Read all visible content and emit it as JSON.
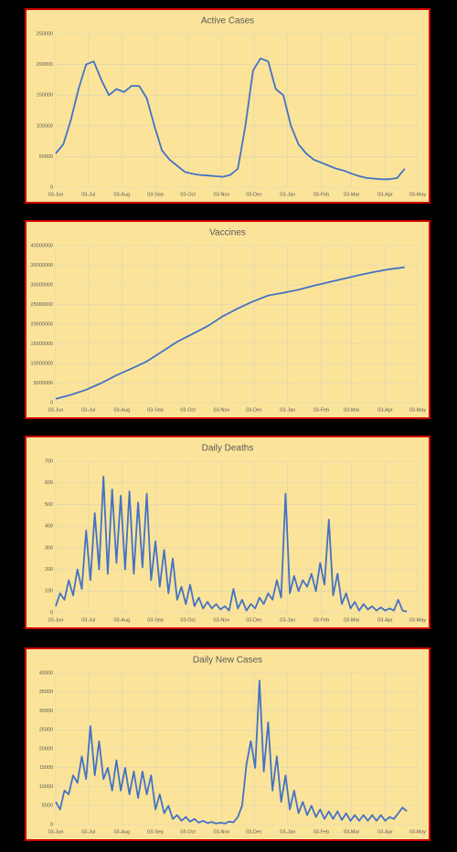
{
  "chart_data": [
    {
      "type": "line",
      "title": "Active Cases",
      "color": "#4472c4",
      "grid": true,
      "xlim": [
        0,
        334
      ],
      "xticks": [
        {
          "value": 0,
          "label": "03-Jun"
        },
        {
          "value": 30,
          "label": "03-Jul"
        },
        {
          "value": 61,
          "label": "03-Aug"
        },
        {
          "value": 92,
          "label": "03-Sep"
        },
        {
          "value": 122,
          "label": "03-Oct"
        },
        {
          "value": 153,
          "label": "03-Nov"
        },
        {
          "value": 183,
          "label": "03-Dec"
        },
        {
          "value": 214,
          "label": "03-Jan"
        },
        {
          "value": 245,
          "label": "03-Feb"
        },
        {
          "value": 273,
          "label": "03-Mar"
        },
        {
          "value": 304,
          "label": "03-Apr"
        },
        {
          "value": 334,
          "label": "03-May"
        }
      ],
      "ylim": [
        0,
        250000
      ],
      "yticks": [
        0,
        50000,
        100000,
        150000,
        200000,
        250000
      ],
      "x": [
        0,
        7,
        14,
        21,
        28,
        35,
        42,
        49,
        56,
        63,
        70,
        77,
        84,
        91,
        98,
        105,
        112,
        119,
        126,
        133,
        140,
        147,
        154,
        161,
        168,
        175,
        182,
        189,
        196,
        203,
        210,
        217,
        224,
        231,
        238,
        245,
        252,
        259,
        266,
        273,
        280,
        287,
        294,
        301,
        308,
        315,
        322
      ],
      "values": [
        55000,
        70000,
        110000,
        160000,
        200000,
        205000,
        175000,
        150000,
        160000,
        155000,
        165000,
        165000,
        145000,
        100000,
        60000,
        45000,
        35000,
        25000,
        22000,
        20000,
        19000,
        18000,
        17000,
        20000,
        30000,
        100000,
        190000,
        210000,
        205000,
        160000,
        150000,
        100000,
        70000,
        55000,
        45000,
        40000,
        35000,
        30000,
        27000,
        22000,
        18000,
        15000,
        14000,
        13000,
        13000,
        15000,
        30000
      ]
    },
    {
      "type": "line",
      "title": "Vaccines",
      "color": "#4472c4",
      "grid": true,
      "xlim": [
        0,
        334
      ],
      "xticks": [
        {
          "value": 0,
          "label": "03-Jun"
        },
        {
          "value": 30,
          "label": "03-Jul"
        },
        {
          "value": 61,
          "label": "03-Aug"
        },
        {
          "value": 92,
          "label": "03-Sep"
        },
        {
          "value": 122,
          "label": "03-Oct"
        },
        {
          "value": 153,
          "label": "03-Nov"
        },
        {
          "value": 183,
          "label": "03-Dec"
        },
        {
          "value": 214,
          "label": "03-Jan"
        },
        {
          "value": 245,
          "label": "03-Feb"
        },
        {
          "value": 273,
          "label": "03-Mar"
        },
        {
          "value": 304,
          "label": "03-Apr"
        },
        {
          "value": 334,
          "label": "03-May"
        }
      ],
      "ylim": [
        0,
        40000000
      ],
      "yticks": [
        0,
        5000000,
        10000000,
        15000000,
        20000000,
        25000000,
        30000000,
        35000000,
        40000000
      ],
      "x": [
        0,
        14,
        28,
        42,
        56,
        70,
        84,
        98,
        112,
        126,
        140,
        154,
        168,
        182,
        196,
        210,
        224,
        238,
        252,
        266,
        280,
        294,
        308,
        322
      ],
      "values": [
        1000000,
        2000000,
        3300000,
        5000000,
        7000000,
        8700000,
        10500000,
        13000000,
        15500000,
        17500000,
        19500000,
        22000000,
        24000000,
        25800000,
        27300000,
        28000000,
        28800000,
        29800000,
        30700000,
        31600000,
        32500000,
        33300000,
        34000000,
        34500000
      ]
    },
    {
      "type": "line",
      "title": "Daily Deaths",
      "color": "#4472c4",
      "grid": true,
      "xlim": [
        0,
        334
      ],
      "xticks": [
        {
          "value": 0,
          "label": "03-Jun"
        },
        {
          "value": 30,
          "label": "03-Jul"
        },
        {
          "value": 61,
          "label": "03-Aug"
        },
        {
          "value": 92,
          "label": "03-Sep"
        },
        {
          "value": 122,
          "label": "03-Oct"
        },
        {
          "value": 153,
          "label": "03-Nov"
        },
        {
          "value": 183,
          "label": "03-Dec"
        },
        {
          "value": 214,
          "label": "03-Jan"
        },
        {
          "value": 245,
          "label": "03-Feb"
        },
        {
          "value": 273,
          "label": "03-Mar"
        },
        {
          "value": 304,
          "label": "03-Apr"
        },
        {
          "value": 334,
          "label": "03-May"
        }
      ],
      "ylim": [
        0,
        700
      ],
      "yticks": [
        0,
        100,
        200,
        300,
        400,
        500,
        600,
        700
      ],
      "x": [
        0,
        4,
        8,
        12,
        16,
        20,
        24,
        28,
        32,
        36,
        40,
        44,
        48,
        52,
        56,
        60,
        64,
        68,
        72,
        76,
        80,
        84,
        88,
        92,
        96,
        100,
        104,
        108,
        112,
        116,
        120,
        124,
        128,
        132,
        136,
        140,
        144,
        148,
        152,
        156,
        160,
        164,
        168,
        172,
        176,
        180,
        184,
        188,
        192,
        196,
        200,
        204,
        208,
        212,
        216,
        220,
        224,
        228,
        232,
        236,
        240,
        244,
        248,
        252,
        256,
        260,
        264,
        268,
        272,
        276,
        280,
        284,
        288,
        292,
        296,
        300,
        304,
        308,
        312,
        316,
        320,
        324
      ],
      "values": [
        30,
        90,
        60,
        150,
        80,
        200,
        110,
        380,
        150,
        460,
        200,
        630,
        180,
        570,
        230,
        540,
        200,
        560,
        180,
        510,
        210,
        550,
        150,
        330,
        120,
        290,
        90,
        250,
        60,
        120,
        40,
        130,
        30,
        70,
        20,
        50,
        20,
        40,
        15,
        30,
        10,
        110,
        20,
        60,
        10,
        40,
        20,
        70,
        40,
        90,
        60,
        150,
        70,
        550,
        90,
        170,
        100,
        150,
        120,
        180,
        100,
        230,
        130,
        430,
        80,
        180,
        40,
        90,
        20,
        50,
        10,
        40,
        15,
        30,
        10,
        25,
        10,
        20,
        10,
        60,
        10,
        5
      ]
    },
    {
      "type": "line",
      "title": "Daily New Cases",
      "color": "#4472c4",
      "grid": true,
      "xlim": [
        0,
        334
      ],
      "xticks": [
        {
          "value": 0,
          "label": "03-Jun"
        },
        {
          "value": 30,
          "label": "03-Jul"
        },
        {
          "value": 61,
          "label": "03-Aug"
        },
        {
          "value": 92,
          "label": "03-Sep"
        },
        {
          "value": 122,
          "label": "03-Oct"
        },
        {
          "value": 153,
          "label": "03-Nov"
        },
        {
          "value": 183,
          "label": "03-Dec"
        },
        {
          "value": 214,
          "label": "03-Jan"
        },
        {
          "value": 245,
          "label": "03-Feb"
        },
        {
          "value": 273,
          "label": "03-Mar"
        },
        {
          "value": 304,
          "label": "03-Apr"
        },
        {
          "value": 334,
          "label": "03-May"
        }
      ],
      "ylim": [
        0,
        40000
      ],
      "yticks": [
        0,
        5000,
        10000,
        15000,
        20000,
        25000,
        30000,
        35000,
        40000
      ],
      "x": [
        0,
        4,
        8,
        12,
        16,
        20,
        24,
        28,
        32,
        36,
        40,
        44,
        48,
        52,
        56,
        60,
        64,
        68,
        72,
        76,
        80,
        84,
        88,
        92,
        96,
        100,
        104,
        108,
        112,
        116,
        120,
        124,
        128,
        132,
        136,
        140,
        144,
        148,
        152,
        156,
        160,
        164,
        168,
        172,
        176,
        180,
        184,
        188,
        192,
        196,
        200,
        204,
        208,
        212,
        216,
        220,
        224,
        228,
        232,
        236,
        240,
        244,
        248,
        252,
        256,
        260,
        264,
        268,
        272,
        276,
        280,
        284,
        288,
        292,
        296,
        300,
        304,
        308,
        312,
        316,
        320,
        324
      ],
      "values": [
        6000,
        4000,
        9000,
        8000,
        13000,
        11000,
        18000,
        12000,
        26000,
        13000,
        22000,
        12000,
        15000,
        9000,
        17000,
        9000,
        15000,
        8000,
        14000,
        7000,
        14000,
        8000,
        13000,
        4000,
        8000,
        3000,
        5000,
        1500,
        2500,
        1000,
        2000,
        800,
        1500,
        500,
        1000,
        400,
        700,
        300,
        500,
        300,
        800,
        600,
        2000,
        5000,
        16000,
        22000,
        15000,
        38000,
        14000,
        27000,
        9000,
        18000,
        6000,
        13000,
        4000,
        9000,
        3000,
        6000,
        2500,
        5000,
        2000,
        4000,
        1500,
        3500,
        1500,
        3500,
        1200,
        3000,
        1000,
        2500,
        1000,
        2500,
        1000,
        2500,
        1000,
        2500,
        1000,
        2000,
        1500,
        3000,
        4500,
        3500
      ]
    }
  ]
}
